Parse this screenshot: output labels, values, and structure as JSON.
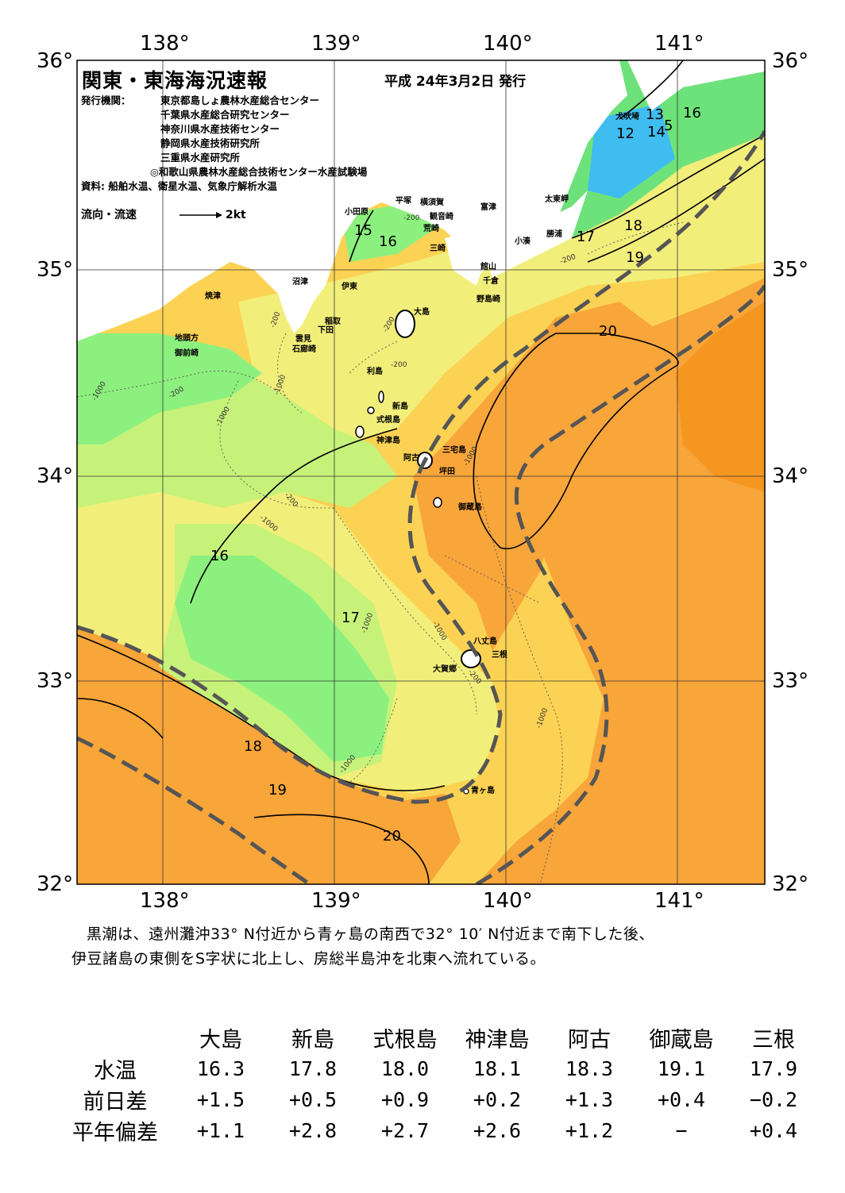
{
  "header": {
    "title": "関東・東海海況速報",
    "date": "平成 24年3月2日 発行",
    "publisher_label": "発行機関：",
    "publishers": [
      "東京都島しょ農林水産総合センター",
      "千葉県水産総合研究センター",
      "神奈川県水産技術センター",
      "静岡県水産技術研究所",
      "三重県水産研究所",
      "◎和歌山県農林水産総合技術センター水産試験場"
    ],
    "source": "資料: 船舶水温、衛星水温、気象庁解析水温",
    "flow_label": "流向・流速",
    "flow_scale": "2kt"
  },
  "axes": {
    "lon_labels": [
      "138°",
      "139°",
      "140°",
      "141°"
    ],
    "lat_labels": [
      "36°",
      "35°",
      "34°",
      "33°",
      "32°"
    ]
  },
  "places": {
    "inubo": "犬吠埼",
    "taito": "太東岬",
    "katsuura": "勝浦",
    "kominato": "小湊",
    "tateyama": "館山",
    "chikura": "千倉",
    "nojima": "野島崎",
    "futtsu": "富津",
    "kannonzaki": "観音崎",
    "yokosuka": "横須賀",
    "hiratsuka": "平塚",
    "arasaki": "荒崎",
    "misaki": "三崎",
    "odawara": "小田原",
    "numazu": "沼津",
    "ito": "伊東",
    "inatori": "稲取",
    "shimoda": "下田",
    "kumomi": "雲見",
    "irozaki": "石廊崎",
    "yaizu": "焼津",
    "jitokata": "地頭方",
    "omaezaki": "御前崎",
    "oshima": "大島",
    "toshima": "利島",
    "niijima": "新島",
    "shikinejima": "式根島",
    "kozushima": "神津島",
    "miyakejima": "三宅島",
    "ako": "阿古",
    "tsubota": "坪田",
    "mikurajima": "御蔵島",
    "hachijojima": "八丈島",
    "mitsune": "三根",
    "okago": "大賀郷",
    "aogashima": "青ヶ島"
  },
  "contours": {
    "t12": "12",
    "t13": "13",
    "t14": "14",
    "t15a": "5",
    "t16a": "16",
    "t15b": "15",
    "t16b": "16",
    "t17a": "17",
    "t18a": "18",
    "t19a": "19",
    "t20a": "20",
    "t16c": "16",
    "t17b": "17",
    "t18b": "18",
    "t19b": "19",
    "t20b": "20",
    "d1": "-1000",
    "d2": "-200",
    "d3": "-1000",
    "d4": "-200",
    "d5": "-1000",
    "d6": "-200",
    "d7": "-1000",
    "d8": "-1000",
    "d9": "-200",
    "d10": "-1000",
    "d11": "-1000",
    "d12": "-1000",
    "d13": "-200",
    "d14": "-1000",
    "d15": "-200",
    "d16": "-200",
    "d17": "-200"
  },
  "summary": [
    "黒潮は、遠州灘沖33° N付近から青ヶ島の南西で32° 10′ N付近まで南下した後、",
    "伊豆諸島の東側をS字状に北上し、房総半島沖を北東へ流れている。"
  ],
  "table": {
    "columns": [
      "大島",
      "新島",
      "式根島",
      "神津島",
      "阿古",
      "御蔵島",
      "三根"
    ],
    "rows": [
      {
        "label": "水温",
        "values": [
          "16.3",
          "17.8",
          "18.0",
          "18.1",
          "18.3",
          "19.1",
          "17.9"
        ]
      },
      {
        "label": "前日差",
        "values": [
          "+1.5",
          "+0.5",
          "+0.9",
          "+0.2",
          "+1.3",
          "+0.4",
          "−0.2"
        ]
      },
      {
        "label": "平年偏差",
        "values": [
          "+1.1",
          "+2.8",
          "+2.7",
          "+2.6",
          "+1.2",
          "−",
          "+0.4"
        ]
      }
    ]
  },
  "colors": {
    "t12": "#3fbcf0",
    "t13": "#5fd3c0",
    "t14": "#4ed08e",
    "t15": "#6ee27a",
    "t16": "#8cf07e",
    "t17": "#c7f27a",
    "t18": "#f2ee7a",
    "t19": "#fbd253",
    "t20": "#f8a53a",
    "t21": "#f59621",
    "land": "#ffffff",
    "kuroshio": "#555555"
  }
}
